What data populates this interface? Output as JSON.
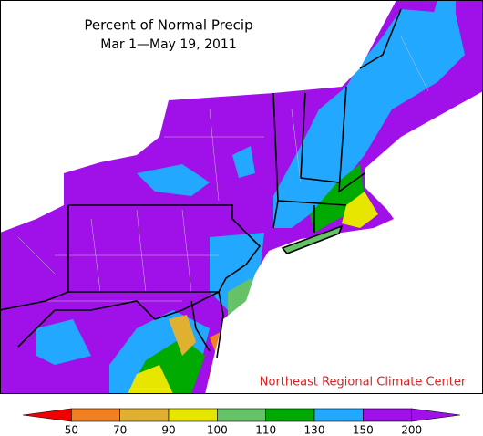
{
  "title": "Percent of Normal Precip",
  "subtitle": "Mar 1—May 19, 2011",
  "credit": "Northeast Regional Climate Center",
  "legend": {
    "ticks": [
      50,
      70,
      90,
      100,
      110,
      130,
      150,
      200
    ],
    "colors": [
      "#f00000",
      "#f08020",
      "#e0b030",
      "#e6e600",
      "#66c266",
      "#00aa00",
      "#22a8ff",
      "#a010e8",
      "#a010e8"
    ]
  }
}
